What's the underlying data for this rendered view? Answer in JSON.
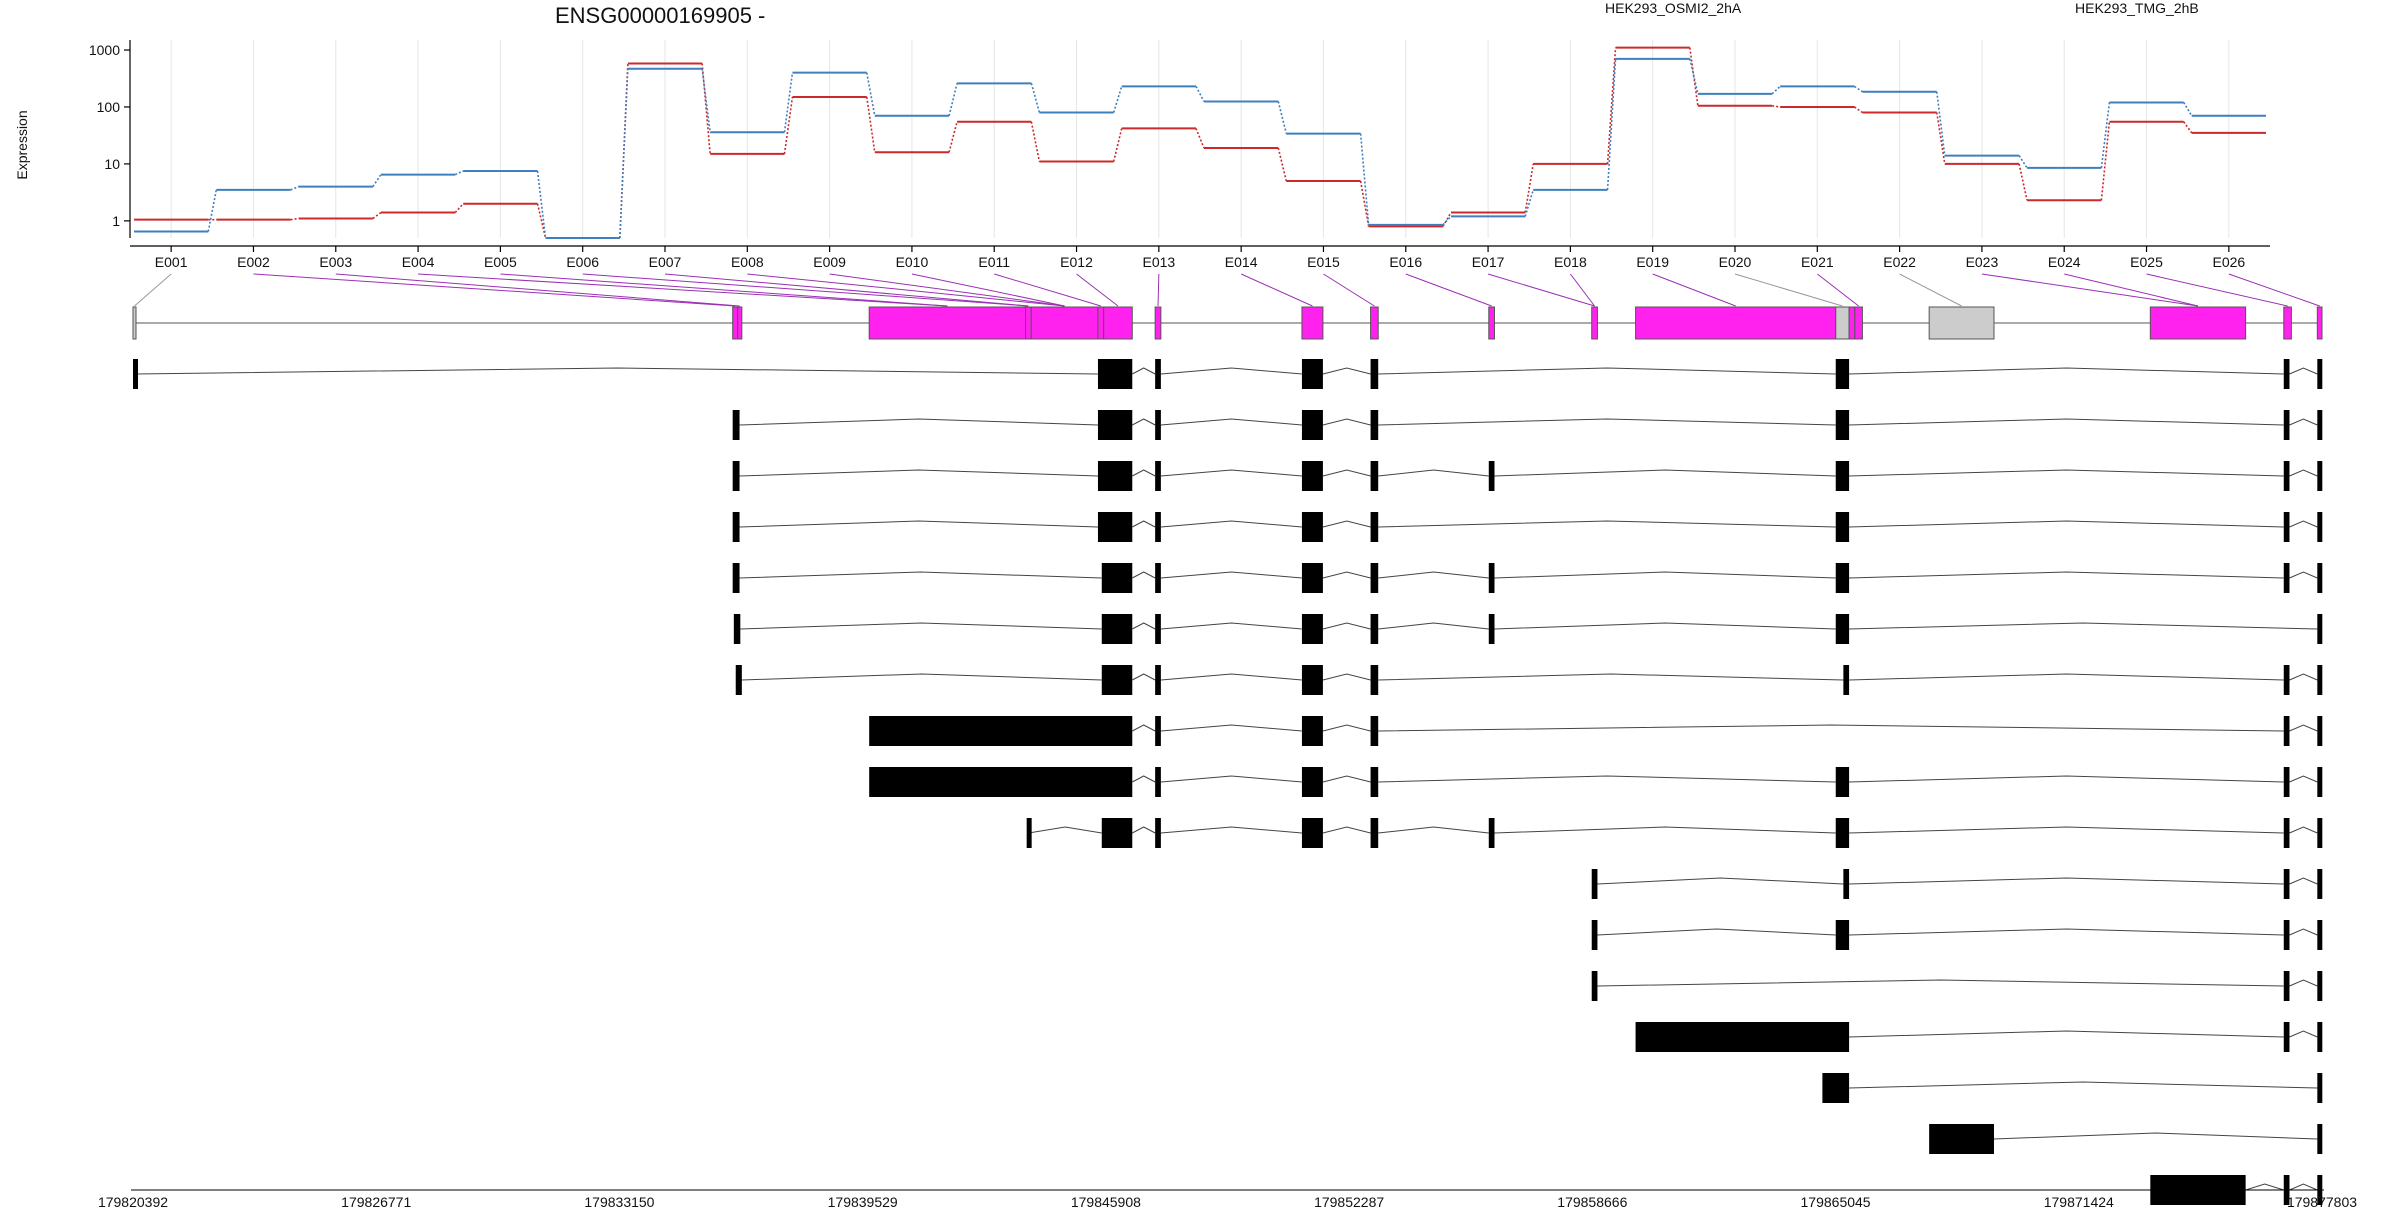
{
  "chart_data": {
    "type": "line",
    "title": "ENSG00000169905 -",
    "ylabel": "Expression",
    "yscale": "log",
    "ylim": [
      0.5,
      1500
    ],
    "yticks": [
      {
        "value": 1,
        "label": "1"
      },
      {
        "value": 10,
        "label": "10"
      },
      {
        "value": 100,
        "label": "100"
      },
      {
        "value": 1000,
        "label": "1000"
      }
    ],
    "legend_position": "top-right",
    "categories": [
      "E001",
      "E002",
      "E003",
      "E004",
      "E005",
      "E006",
      "E007",
      "E008",
      "E009",
      "E010",
      "E011",
      "E012",
      "E013",
      "E014",
      "E015",
      "E016",
      "E017",
      "E018",
      "E019",
      "E020",
      "E021",
      "E022",
      "E023",
      "E024",
      "E025",
      "E026"
    ],
    "series": [
      {
        "name": "HEK293_OSMI2_2hA",
        "color": "#cc2a2a",
        "values": [
          1.05,
          1.05,
          1.1,
          1.4,
          2.0,
          0.5,
          580,
          15,
          150,
          16,
          55,
          11,
          42,
          19,
          5,
          0.8,
          1.4,
          10,
          1100,
          105,
          100,
          80,
          10,
          2.3,
          55,
          35
        ]
      },
      {
        "name": "HEK293_TMG_2hB",
        "color": "#3f7fbf",
        "values": [
          0.65,
          3.5,
          4.0,
          6.5,
          7.5,
          0.5,
          470,
          36,
          400,
          70,
          260,
          80,
          230,
          125,
          34,
          0.85,
          1.2,
          3.5,
          700,
          170,
          230,
          185,
          14,
          8.5,
          120,
          70
        ]
      }
    ],
    "gene_model": {
      "genomic_range": [
        179820392,
        179877803
      ],
      "axis_ticks": [
        179820392,
        179826771,
        179833150,
        179839529,
        179845908,
        179852287,
        179858666,
        179865045,
        179871424,
        179877803
      ],
      "exons": [
        {
          "id": "E001",
          "start": 179820392,
          "end": 179820470,
          "significant": false
        },
        {
          "id": "E002",
          "start": 179836120,
          "end": 179836250,
          "significant": true
        },
        {
          "id": "E003",
          "start": 179836250,
          "end": 179836360,
          "significant": true
        },
        {
          "id": "E004",
          "start": 179839700,
          "end": 179843800,
          "significant": true
        },
        {
          "id": "E005",
          "start": 179843800,
          "end": 179843950,
          "significant": true
        },
        {
          "id": "E006",
          "start": 179843950,
          "end": 179845700,
          "significant": true
        },
        {
          "id": "E007",
          "start": 179845700,
          "end": 179845850,
          "significant": true
        },
        {
          "id": "E008",
          "start": 179845850,
          "end": 179846600,
          "significant": true
        },
        {
          "id": "E009",
          "start": 179847200,
          "end": 179847350,
          "significant": true
        },
        {
          "id": "E010",
          "start": 179851050,
          "end": 179851600,
          "significant": true
        },
        {
          "id": "E011",
          "start": 179852850,
          "end": 179853050,
          "significant": true
        },
        {
          "id": "E012",
          "start": 179855950,
          "end": 179856100,
          "significant": true
        },
        {
          "id": "E013",
          "start": 179858650,
          "end": 179858800,
          "significant": true
        },
        {
          "id": "E014",
          "start": 179859800,
          "end": 179865050,
          "significant": true
        },
        {
          "id": "E015",
          "start": 179865050,
          "end": 179865400,
          "significant": false
        },
        {
          "id": "E016",
          "start": 179865400,
          "end": 179865550,
          "significant": true
        },
        {
          "id": "E017",
          "start": 179865550,
          "end": 179865750,
          "significant": true
        },
        {
          "id": "E018",
          "start": 179867500,
          "end": 179869200,
          "significant": false
        },
        {
          "id": "E019",
          "start": 179873300,
          "end": 179875800,
          "significant": true
        },
        {
          "id": "E020",
          "start": 179876800,
          "end": 179877000,
          "significant": true
        },
        {
          "id": "E021",
          "start": 179877680,
          "end": 179877803,
          "significant": true
        }
      ],
      "label_to_exon": [
        0,
        1,
        2,
        3,
        3,
        4,
        4,
        5,
        5,
        5,
        6,
        7,
        8,
        9,
        10,
        11,
        12,
        12,
        13,
        14,
        16,
        17,
        18,
        18,
        19,
        20
      ],
      "transcripts": [
        [
          [
            179820392,
            179820470
          ],
          [
            179845700,
            179846600
          ],
          [
            179847200,
            179847350
          ],
          [
            179851050,
            179851600
          ],
          [
            179852850,
            179853050
          ],
          [
            179865050,
            179865400
          ],
          [
            179876800,
            179876950
          ],
          [
            179877680,
            179877803
          ]
        ],
        [
          [
            179836120,
            179836300
          ],
          [
            179845700,
            179846600
          ],
          [
            179847200,
            179847350
          ],
          [
            179851050,
            179851600
          ],
          [
            179852850,
            179853050
          ],
          [
            179865050,
            179865400
          ],
          [
            179876800,
            179876950
          ],
          [
            179877680,
            179877803
          ]
        ],
        [
          [
            179836120,
            179836300
          ],
          [
            179845700,
            179846600
          ],
          [
            179847200,
            179847350
          ],
          [
            179851050,
            179851600
          ],
          [
            179852850,
            179853050
          ],
          [
            179855950,
            179856100
          ],
          [
            179865050,
            179865400
          ],
          [
            179876800,
            179876950
          ],
          [
            179877680,
            179877803
          ]
        ],
        [
          [
            179836120,
            179836300
          ],
          [
            179845700,
            179846600
          ],
          [
            179847200,
            179847350
          ],
          [
            179851050,
            179851600
          ],
          [
            179852850,
            179853050
          ],
          [
            179865050,
            179865400
          ],
          [
            179876800,
            179876950
          ],
          [
            179877680,
            179877803
          ]
        ],
        [
          [
            179836120,
            179836300
          ],
          [
            179845800,
            179846600
          ],
          [
            179847200,
            179847350
          ],
          [
            179851050,
            179851600
          ],
          [
            179852850,
            179853050
          ],
          [
            179855950,
            179856100
          ],
          [
            179865050,
            179865400
          ],
          [
            179876800,
            179876950
          ],
          [
            179877680,
            179877803
          ]
        ],
        [
          [
            179836150,
            179836320
          ],
          [
            179845800,
            179846600
          ],
          [
            179847200,
            179847350
          ],
          [
            179851050,
            179851600
          ],
          [
            179852850,
            179853050
          ],
          [
            179855950,
            179856100
          ],
          [
            179865050,
            179865400
          ],
          [
            179877680,
            179877803
          ]
        ],
        [
          [
            179836200,
            179836360
          ],
          [
            179845800,
            179846600
          ],
          [
            179847200,
            179847350
          ],
          [
            179851050,
            179851600
          ],
          [
            179852850,
            179853050
          ],
          [
            179865250,
            179865400
          ],
          [
            179876800,
            179876950
          ],
          [
            179877680,
            179877803
          ]
        ],
        [
          [
            179839700,
            179846600
          ],
          [
            179847200,
            179847350
          ],
          [
            179851050,
            179851600
          ],
          [
            179852850,
            179853050
          ],
          [
            179876800,
            179876950
          ],
          [
            179877680,
            179877803
          ]
        ],
        [
          [
            179839700,
            179846600
          ],
          [
            179847200,
            179847350
          ],
          [
            179851050,
            179851600
          ],
          [
            179852850,
            179853050
          ],
          [
            179865050,
            179865400
          ],
          [
            179876800,
            179876950
          ],
          [
            179877680,
            179877803
          ]
        ],
        [
          [
            179843830,
            179843880
          ],
          [
            179845800,
            179846600
          ],
          [
            179847200,
            179847350
          ],
          [
            179851050,
            179851600
          ],
          [
            179852850,
            179853050
          ],
          [
            179855950,
            179856100
          ],
          [
            179865050,
            179865400
          ],
          [
            179876800,
            179876950
          ],
          [
            179877680,
            179877803
          ]
        ],
        [
          [
            179858650,
            179858800
          ],
          [
            179865250,
            179865400
          ],
          [
            179876800,
            179876950
          ],
          [
            179877680,
            179877803
          ]
        ],
        [
          [
            179858650,
            179858800
          ],
          [
            179865050,
            179865400
          ],
          [
            179876800,
            179876950
          ],
          [
            179877680,
            179877803
          ]
        ],
        [
          [
            179858650,
            179858800
          ],
          [
            179876800,
            179876950
          ],
          [
            179877680,
            179877803
          ]
        ],
        [
          [
            179859800,
            179865400
          ],
          [
            179876800,
            179876950
          ],
          [
            179877680,
            179877803
          ]
        ],
        [
          [
            179864700,
            179865400
          ],
          [
            179877680,
            179877803
          ]
        ],
        [
          [
            179867500,
            179869200
          ],
          [
            179877680,
            179877803
          ]
        ],
        [
          [
            179873300,
            179875800
          ],
          [
            179876800,
            179876950
          ],
          [
            179877680,
            179877803
          ]
        ]
      ]
    }
  },
  "colors": {
    "significant_exon": "#ff22ee",
    "nonsignificant_exon": "#cccccc",
    "connector": "#9b30b5",
    "connector_nonsig": "#999999",
    "transcript_exon": "#000000"
  }
}
